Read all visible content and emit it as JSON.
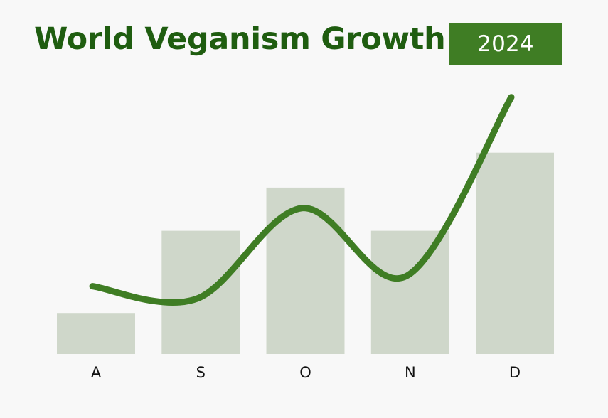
{
  "header": {
    "title": "World Veganism Growth",
    "year_badge": "2024"
  },
  "chart_data": {
    "type": "bar",
    "title": "World Veganism Growth",
    "badge": "2024",
    "categories": [
      "A",
      "S",
      "O",
      "N",
      "D"
    ],
    "values": [
      1.0,
      3.0,
      4.05,
      3.0,
      4.9
    ],
    "ylim": [
      0,
      6.4
    ],
    "grid": false,
    "trend_line": {
      "type": "line",
      "values": [
        1.65,
        1.35,
        3.55,
        1.9,
        6.25
      ],
      "smooth": true,
      "series_labels_printed": false
    },
    "colors": {
      "bar": "#cfd7ca",
      "line": "#3f7d24",
      "title": "#1f5d10",
      "badge_bg": "#3f7d24",
      "badge_text": "#ffffff",
      "background": "#f8f8f8"
    }
  }
}
